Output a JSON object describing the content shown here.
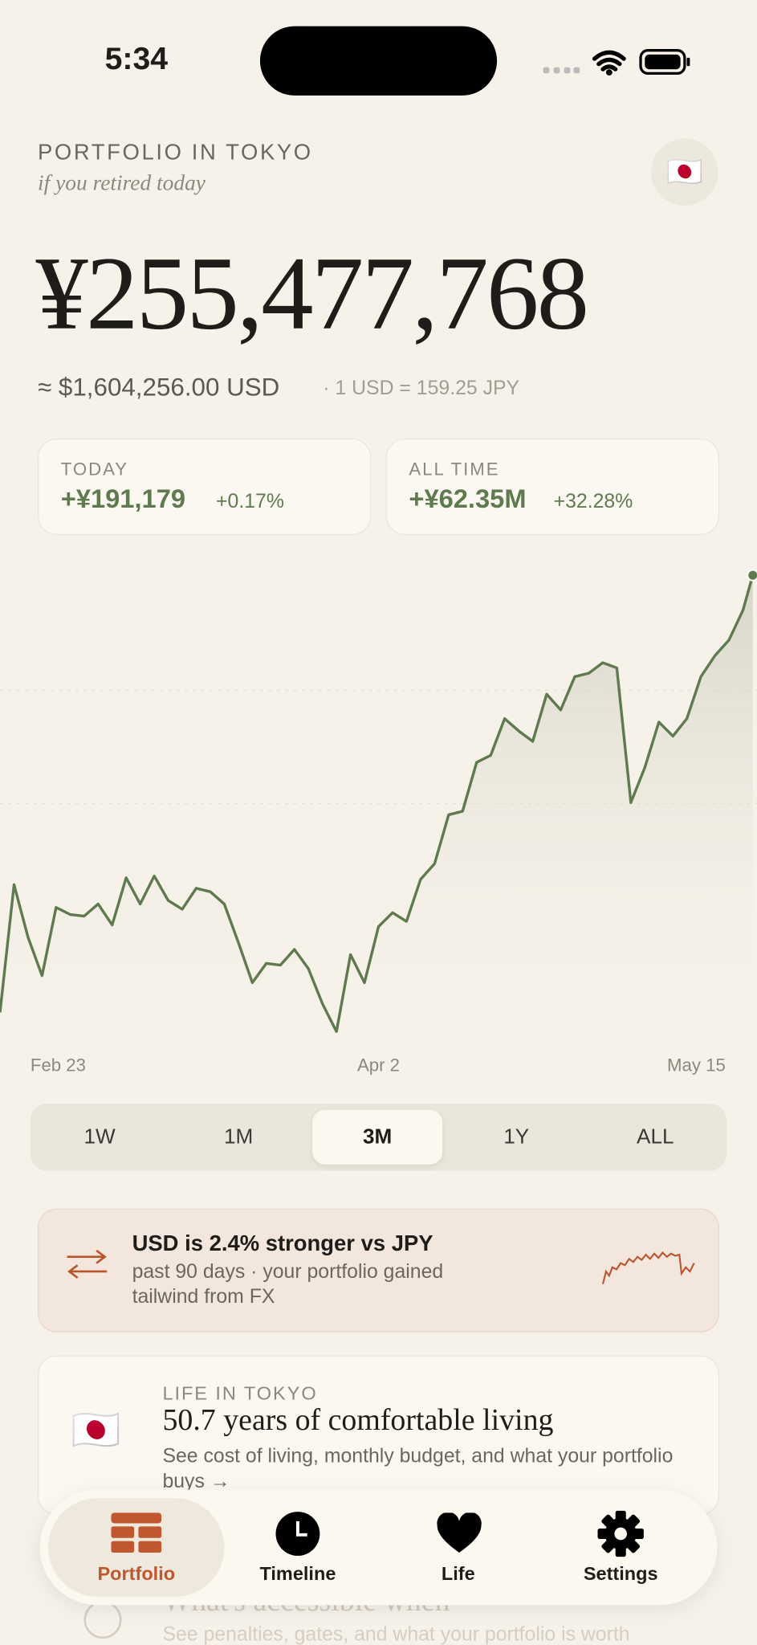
{
  "status_bar": {
    "time": "5:34"
  },
  "header": {
    "title": "PORTFOLIO IN TOKYO",
    "subtitle": "if you retired today",
    "flag": "🇯🇵"
  },
  "balance": {
    "amount": "¥255,477,768",
    "usd": "≈ $1,604,256.00 USD",
    "rate": "· 1 USD = 159.25 JPY"
  },
  "stats": [
    {
      "label": "TODAY",
      "value": "+¥191,179",
      "pct": "+0.17%"
    },
    {
      "label": "ALL TIME",
      "value": "+¥62.35M",
      "pct": "+32.28%"
    }
  ],
  "chart": {
    "type": "line",
    "x_labels": [
      "Feb 23",
      "Apr 2",
      "May 15"
    ],
    "ylim": [
      229,
      256
    ],
    "color": "#5f7a4f",
    "values": [
      230.5,
      237.8,
      234.8,
      232.6,
      236.5,
      236.1,
      236.0,
      236.7,
      235.5,
      238.2,
      236.7,
      238.3,
      236.9,
      236.4,
      237.6,
      237.4,
      236.7,
      234.5,
      232.2,
      233.3,
      233.2,
      234.1,
      233.0,
      231.0,
      229.4,
      233.8,
      232.2,
      235.4,
      236.2,
      235.7,
      238.1,
      239.0,
      241.8,
      242.0,
      244.8,
      245.2,
      247.3,
      246.6,
      246.0,
      248.7,
      247.8,
      249.7,
      249.9,
      250.5,
      250.2,
      242.5,
      244.5,
      247.1,
      246.3,
      247.3,
      249.7,
      250.9,
      251.8,
      253.5,
      255.5
    ]
  },
  "ranges": {
    "options": [
      "1W",
      "1M",
      "3M",
      "1Y",
      "ALL"
    ],
    "selected": "3M"
  },
  "fx_card": {
    "title": "USD is 2.4% stronger vs JPY",
    "body": "past 90 days · your portfolio gained tailwind from FX"
  },
  "life_card": {
    "flag": "🇯🇵",
    "label": "LIFE IN TOKYO",
    "title": "50.7 years of comfortable living",
    "body": "See cost of living, monthly budget, and what your portfolio buys →"
  },
  "next_card": {
    "title": "What's accessible when",
    "body": "See penalties, gates, and what your portfolio is worth"
  },
  "tabs": [
    {
      "label": "Portfolio",
      "active": true
    },
    {
      "label": "Timeline"
    },
    {
      "label": "Life"
    },
    {
      "label": "Settings"
    }
  ]
}
